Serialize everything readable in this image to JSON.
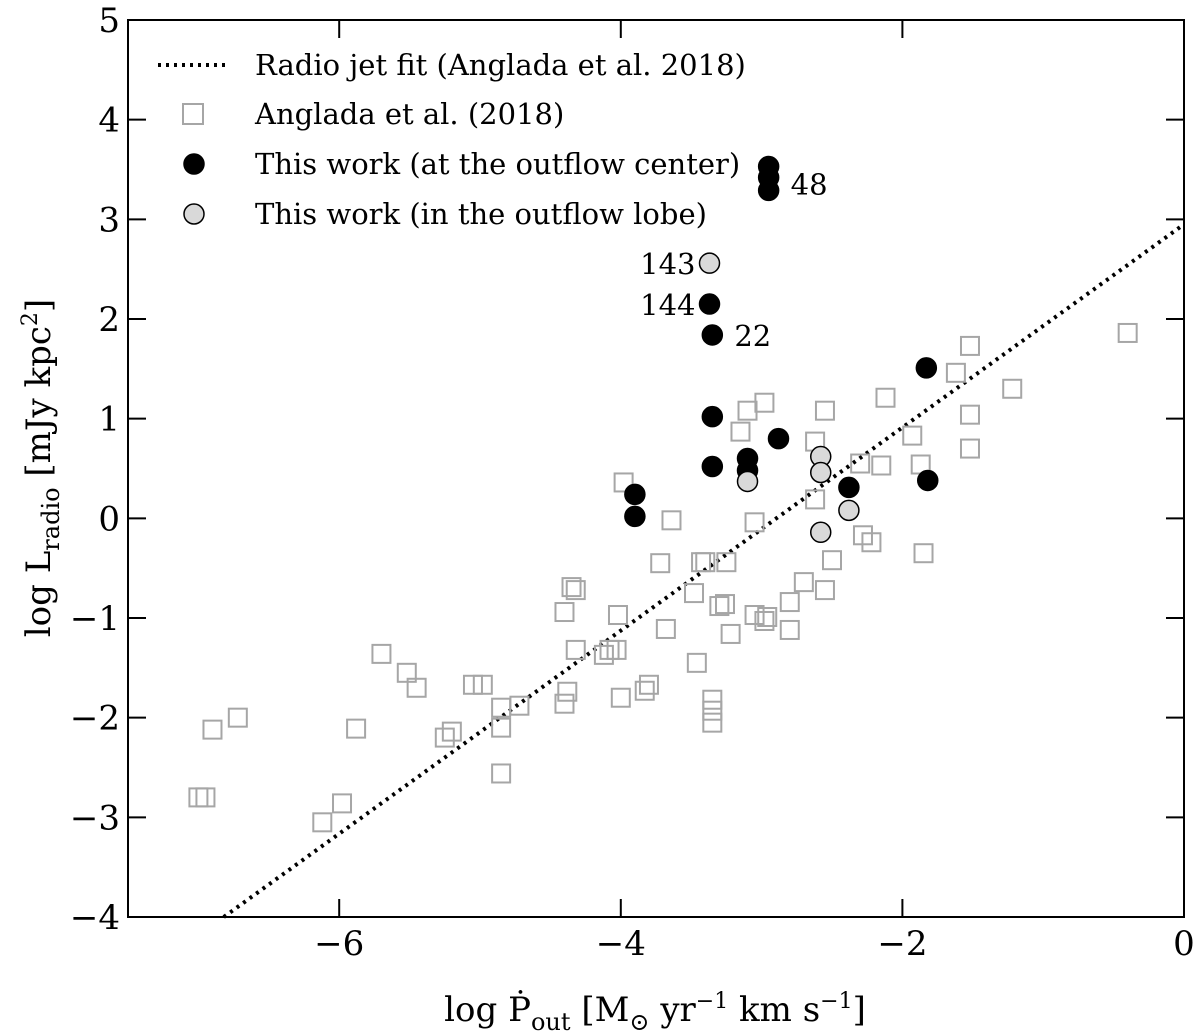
{
  "chart_data": {
    "type": "scatter",
    "xlabel": "log Ṗ_out [M⊙ yr⁻¹ km s⁻¹]",
    "xlabel_parts": {
      "main": "log Ṗ",
      "main_sub": "out",
      "units_open": " [M",
      "units_sun": "⊙",
      "units_yr": " yr",
      "units_yr_exp": "−1",
      "units_kms": " km s",
      "units_kms_exp": "−1",
      "units_close": "]"
    },
    "ylabel": "log L_radio [mJy kpc²]",
    "ylabel_parts": {
      "main": "log L",
      "main_sub": "radio",
      "units": " [mJy kpc",
      "units_exp": "2",
      "units_close": "]"
    },
    "xlim": [
      -7.5,
      0
    ],
    "ylim": [
      -4,
      5
    ],
    "xticks": [
      -6,
      -4,
      -2,
      0
    ],
    "xtick_labels": [
      "−6",
      "−4",
      "−2",
      "0"
    ],
    "yticks": [
      -4,
      -3,
      -2,
      -1,
      0,
      1,
      2,
      3,
      4,
      5
    ],
    "ytick_labels": [
      "−4",
      "−3",
      "−2",
      "−1",
      "0",
      "1",
      "2",
      "3",
      "4",
      "5"
    ],
    "legend": {
      "position": "top-left",
      "entries": [
        "Radio jet fit (Anglada et al. 2018)",
        "Anglada et al. (2018)",
        "This work (at the outflow center)",
        "This work (in the outflow lobe)"
      ]
    },
    "series": [
      {
        "name": "Radio jet fit (Anglada et al. 2018)",
        "style": "dotted-line",
        "color": "#000000",
        "points": [
          [
            -6.82,
            -4.0
          ],
          [
            0.0,
            2.95
          ]
        ]
      },
      {
        "name": "Anglada et al. (2018)",
        "style": "open-square",
        "color": "#a6a6a6",
        "points": [
          [
            -7.0,
            -2.8
          ],
          [
            -6.95,
            -2.8
          ],
          [
            -6.9,
            -2.12
          ],
          [
            -6.72,
            -2.0
          ],
          [
            -6.12,
            -3.05
          ],
          [
            -5.98,
            -2.86
          ],
          [
            -5.88,
            -2.11
          ],
          [
            -5.7,
            -1.36
          ],
          [
            -5.52,
            -1.55
          ],
          [
            -5.45,
            -1.7
          ],
          [
            -5.25,
            -2.2
          ],
          [
            -5.2,
            -2.14
          ],
          [
            -5.05,
            -1.67
          ],
          [
            -4.98,
            -1.67
          ],
          [
            -4.85,
            -2.56
          ],
          [
            -4.85,
            -2.1
          ],
          [
            -4.85,
            -1.9
          ],
          [
            -4.72,
            -1.88
          ],
          [
            -4.4,
            -1.86
          ],
          [
            -4.38,
            -1.74
          ],
          [
            -4.4,
            -0.94
          ],
          [
            -4.35,
            -0.69
          ],
          [
            -4.32,
            -0.72
          ],
          [
            -4.32,
            -1.32
          ],
          [
            -4.12,
            -1.37
          ],
          [
            -4.08,
            -1.32
          ],
          [
            -4.03,
            -1.32
          ],
          [
            -4.02,
            -0.97
          ],
          [
            -4.0,
            -1.8
          ],
          [
            -3.98,
            0.36
          ],
          [
            -3.83,
            -1.73
          ],
          [
            -3.8,
            -1.67
          ],
          [
            -3.72,
            -0.45
          ],
          [
            -3.68,
            -1.11
          ],
          [
            -3.64,
            -0.02
          ],
          [
            -3.48,
            -0.75
          ],
          [
            -3.46,
            -1.45
          ],
          [
            -3.43,
            -0.44
          ],
          [
            -3.4,
            -0.44
          ],
          [
            -3.35,
            -1.82
          ],
          [
            -3.35,
            -1.93
          ],
          [
            -3.35,
            -2.05
          ],
          [
            -3.3,
            -0.88
          ],
          [
            -3.26,
            -0.86
          ],
          [
            -3.25,
            -0.44
          ],
          [
            -3.22,
            -1.16
          ],
          [
            -3.15,
            0.87
          ],
          [
            -3.1,
            1.08
          ],
          [
            -3.05,
            -0.04
          ],
          [
            -3.05,
            -0.97
          ],
          [
            -2.98,
            1.16
          ],
          [
            -2.98,
            -1.03
          ],
          [
            -2.96,
            -0.99
          ],
          [
            -2.8,
            -0.84
          ],
          [
            -2.8,
            -1.12
          ],
          [
            -2.7,
            -0.64
          ],
          [
            -2.62,
            0.19
          ],
          [
            -2.62,
            0.77
          ],
          [
            -2.55,
            1.08
          ],
          [
            -2.55,
            -0.72
          ],
          [
            -2.5,
            -0.42
          ],
          [
            -2.3,
            0.55
          ],
          [
            -2.28,
            -0.17
          ],
          [
            -2.22,
            -0.24
          ],
          [
            -2.15,
            0.53
          ],
          [
            -2.12,
            1.21
          ],
          [
            -1.93,
            0.83
          ],
          [
            -1.87,
            0.54
          ],
          [
            -1.85,
            -0.35
          ],
          [
            -1.62,
            1.46
          ],
          [
            -1.52,
            1.73
          ],
          [
            -1.52,
            1.04
          ],
          [
            -1.52,
            0.7
          ],
          [
            -1.22,
            1.3
          ],
          [
            -0.4,
            1.86
          ]
        ]
      },
      {
        "name": "This work (at the outflow center)",
        "style": "filled-circle",
        "color": "#000000",
        "points": [
          [
            -3.9,
            0.24
          ],
          [
            -3.9,
            0.02
          ],
          [
            -3.35,
            1.84
          ],
          [
            -3.37,
            2.15
          ],
          [
            -3.35,
            1.02
          ],
          [
            -3.35,
            0.52
          ],
          [
            -3.1,
            0.6
          ],
          [
            -3.1,
            0.48
          ],
          [
            -2.95,
            3.53
          ],
          [
            -2.95,
            3.42
          ],
          [
            -2.95,
            3.29
          ],
          [
            -2.88,
            0.8
          ],
          [
            -2.38,
            0.31
          ],
          [
            -1.83,
            1.51
          ],
          [
            -1.82,
            0.38
          ]
        ]
      },
      {
        "name": "This work (in the outflow lobe)",
        "style": "gray-circle",
        "color": "#d9d9d9",
        "points": [
          [
            -3.37,
            2.56
          ],
          [
            -3.1,
            0.37
          ],
          [
            -2.58,
            0.62
          ],
          [
            -2.58,
            0.46
          ],
          [
            -2.58,
            -0.14
          ],
          [
            -2.38,
            0.08
          ]
        ]
      }
    ],
    "annotations": [
      {
        "text": "48",
        "x": -2.95,
        "y": 3.36
      },
      {
        "text": "143",
        "x": -3.37,
        "y": 2.56
      },
      {
        "text": "144",
        "x": -3.37,
        "y": 2.15
      },
      {
        "text": "22",
        "x": -3.35,
        "y": 1.84
      }
    ]
  }
}
